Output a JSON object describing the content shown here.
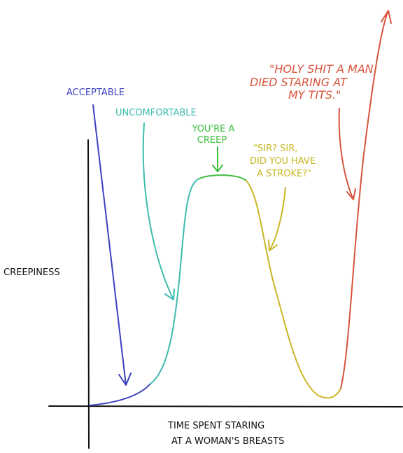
{
  "axes": {
    "y_label": "CREEPINESS",
    "x_label": [
      "TIME SPENT STARING",
      "AT A WOMAN'S BREASTS"
    ]
  },
  "annotations": [
    {
      "lines": [
        "ACCEPTABLE"
      ],
      "color": "#3b40c0"
    },
    {
      "lines": [
        "UNCOMFORTABLE"
      ],
      "color": "#3cbcae"
    },
    {
      "lines": [
        "YOU'RE A",
        "CREEP"
      ],
      "color": "#3dbd3d"
    },
    {
      "lines": [
        "\"SIR? SIR,",
        "DID YOU HAVE",
        "A STROKE?\""
      ],
      "color": "#c9b724"
    },
    {
      "lines": [
        "\"HOLY SHIT A MAN",
        "DIED STARING AT",
        "MY TITS.\""
      ],
      "color": "#d8543d"
    }
  ]
}
